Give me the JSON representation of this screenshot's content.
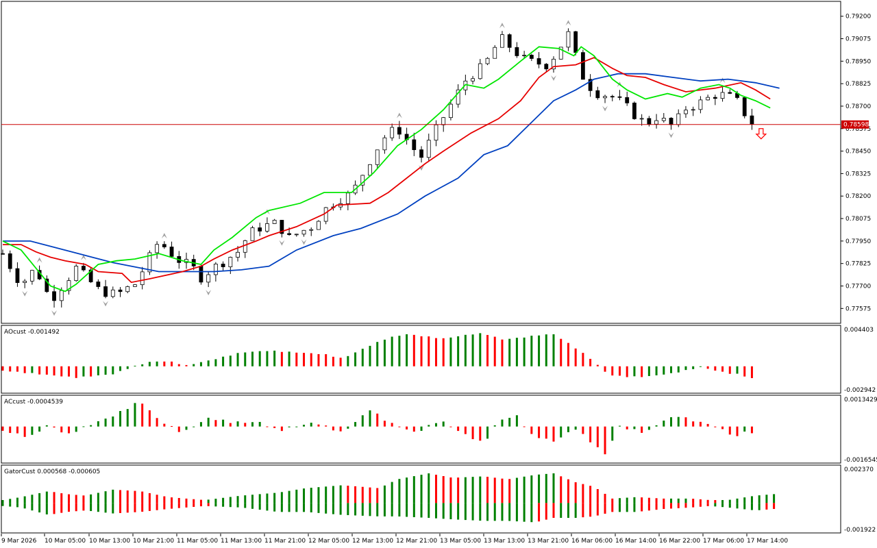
{
  "chart_data": {
    "type": "candlestick",
    "colors": {
      "background": "#ffffff",
      "frame": "#000000",
      "bull_body": "#ffffff",
      "bear_body": "#000000",
      "fast_ma": "#00e600",
      "mid_ma": "#e60000",
      "slow_ma": "#0040c0",
      "hline": "#cc0000",
      "histogram_up": "#008000",
      "histogram_down": "#ff0000",
      "fractal_marker": "#a0a0a0",
      "sell_arrow": "#ff0000"
    },
    "main": {
      "price_axis_labels": [
        "0.79200",
        "0.79075",
        "0.78950",
        "0.78825",
        "0.78700",
        "0.78575",
        "0.78450",
        "0.78325",
        "0.78200",
        "0.78075",
        "0.77950",
        "0.77825",
        "0.77700",
        "0.77575"
      ],
      "price_ticks": [
        0.792,
        0.79075,
        0.7895,
        0.78825,
        0.787,
        0.78575,
        0.7845,
        0.78325,
        0.782,
        0.78075,
        0.7795,
        0.77825,
        0.777,
        0.77575
      ],
      "ylim": [
        0.775,
        0.79275
      ],
      "current_price_label": "0.78598",
      "current_price": 0.78598,
      "x_labels": [
        "9 Mar 2026",
        "10 Mar 05:00",
        "10 Mar 13:00",
        "10 Mar 21:00",
        "11 Mar 05:00",
        "11 Mar 13:00",
        "11 Mar 21:00",
        "12 Mar 05:00",
        "12 Mar 13:00",
        "12 Mar 21:00",
        "13 Mar 05:00",
        "13 Mar 13:00",
        "13 Mar 21:00",
        "16 Mar 06:00",
        "16 Mar 14:00",
        "16 Mar 22:00",
        "17 Mar 06:00",
        "17 Mar 14:00"
      ],
      "close_path": [
        [
          0,
          0.7788
        ],
        [
          10,
          0.7771
        ],
        [
          18,
          0.778
        ],
        [
          26,
          0.7762
        ],
        [
          40,
          0.778
        ],
        [
          52,
          0.7768
        ],
        [
          58,
          0.7766
        ],
        [
          62,
          0.7765
        ],
        [
          70,
          0.777
        ],
        [
          72,
          0.7771
        ],
        [
          85,
          0.7795
        ],
        [
          95,
          0.7785
        ],
        [
          105,
          0.7779
        ],
        [
          108,
          0.7775
        ],
        [
          112,
          0.7778
        ],
        [
          122,
          0.7785
        ],
        [
          128,
          0.7789
        ],
        [
          133,
          0.7797
        ],
        [
          138,
          0.7802
        ],
        [
          145,
          0.7804
        ],
        [
          150,
          0.7805
        ],
        [
          153,
          0.78
        ],
        [
          155,
          0.7796
        ],
        [
          162,
          0.78
        ],
        [
          168,
          0.7803
        ],
        [
          175,
          0.7812
        ],
        [
          182,
          0.7818
        ],
        [
          190,
          0.7821
        ],
        [
          200,
          0.784
        ],
        [
          207,
          0.7852
        ],
        [
          215,
          0.7858
        ],
        [
          224,
          0.7846
        ],
        [
          228,
          0.7842
        ],
        [
          240,
          0.7864
        ],
        [
          253,
          0.7886
        ],
        [
          262,
          0.7892
        ],
        [
          270,
          0.7906
        ],
        [
          272,
          0.7907
        ],
        [
          285,
          0.7895
        ],
        [
          297,
          0.7893
        ],
        [
          308,
          0.791
        ],
        [
          315,
          0.7888
        ],
        [
          322,
          0.7878
        ],
        [
          333,
          0.7875
        ],
        [
          339,
          0.787
        ],
        [
          350,
          0.786
        ],
        [
          356,
          0.7864
        ],
        [
          366,
          0.7858
        ],
        [
          370,
          0.7868
        ],
        [
          380,
          0.7872
        ],
        [
          389,
          0.7877
        ],
        [
          399,
          0.7874
        ],
        [
          406,
          0.7863
        ],
        [
          410,
          0.7859
        ]
      ],
      "fast_ma_path": [
        [
          0,
          0.7795
        ],
        [
          10,
          0.779
        ],
        [
          18,
          0.778
        ],
        [
          26,
          0.777
        ],
        [
          34,
          0.7767
        ],
        [
          40,
          0.7771
        ],
        [
          52,
          0.7782
        ],
        [
          62,
          0.7784
        ],
        [
          72,
          0.7785
        ],
        [
          85,
          0.7788
        ],
        [
          98,
          0.7784
        ],
        [
          108,
          0.7782
        ],
        [
          115,
          0.779
        ],
        [
          125,
          0.7797
        ],
        [
          138,
          0.7808
        ],
        [
          145,
          0.7812
        ],
        [
          162,
          0.7816
        ],
        [
          175,
          0.7822
        ],
        [
          190,
          0.7822
        ],
        [
          202,
          0.7833
        ],
        [
          215,
          0.7848
        ],
        [
          228,
          0.7857
        ],
        [
          240,
          0.7868
        ],
        [
          252,
          0.7882
        ],
        [
          262,
          0.788
        ],
        [
          270,
          0.7885
        ],
        [
          282,
          0.7895
        ],
        [
          292,
          0.7903
        ],
        [
          303,
          0.7902
        ],
        [
          311,
          0.7898
        ],
        [
          315,
          0.7903
        ],
        [
          322,
          0.7898
        ],
        [
          332,
          0.7885
        ],
        [
          340,
          0.7879
        ],
        [
          350,
          0.7874
        ],
        [
          362,
          0.7877
        ],
        [
          370,
          0.7875
        ],
        [
          380,
          0.788
        ],
        [
          390,
          0.7882
        ],
        [
          396,
          0.788
        ],
        [
          402,
          0.7876
        ],
        [
          410,
          0.7873
        ],
        [
          418,
          0.7869
        ]
      ],
      "mid_ma_path": [
        [
          0,
          0.7793
        ],
        [
          10,
          0.7793
        ],
        [
          18,
          0.7789
        ],
        [
          26,
          0.7786
        ],
        [
          34,
          0.7784
        ],
        [
          45,
          0.7782
        ],
        [
          52,
          0.7778
        ],
        [
          65,
          0.7777
        ],
        [
          70,
          0.7772
        ],
        [
          80,
          0.7774
        ],
        [
          98,
          0.7778
        ],
        [
          108,
          0.7781
        ],
        [
          115,
          0.7785
        ],
        [
          125,
          0.779
        ],
        [
          138,
          0.7795
        ],
        [
          145,
          0.7798
        ],
        [
          160,
          0.7803
        ],
        [
          175,
          0.781
        ],
        [
          182,
          0.7815
        ],
        [
          200,
          0.7816
        ],
        [
          210,
          0.7822
        ],
        [
          220,
          0.783
        ],
        [
          230,
          0.7838
        ],
        [
          240,
          0.7845
        ],
        [
          255,
          0.7855
        ],
        [
          270,
          0.7863
        ],
        [
          282,
          0.7873
        ],
        [
          292,
          0.7886
        ],
        [
          300,
          0.7892
        ],
        [
          312,
          0.7893
        ],
        [
          322,
          0.7897
        ],
        [
          332,
          0.7891
        ],
        [
          340,
          0.7887
        ],
        [
          350,
          0.7886
        ],
        [
          360,
          0.7882
        ],
        [
          372,
          0.7878
        ],
        [
          388,
          0.788
        ],
        [
          402,
          0.7883
        ],
        [
          410,
          0.7879
        ],
        [
          418,
          0.7874
        ]
      ],
      "slow_ma_path": [
        [
          0,
          0.7795
        ],
        [
          15,
          0.7795
        ],
        [
          30,
          0.7791
        ],
        [
          45,
          0.7787
        ],
        [
          60,
          0.7783
        ],
        [
          75,
          0.778
        ],
        [
          85,
          0.7778
        ],
        [
          100,
          0.7778
        ],
        [
          115,
          0.7778
        ],
        [
          130,
          0.7779
        ],
        [
          145,
          0.7781
        ],
        [
          160,
          0.779
        ],
        [
          180,
          0.7798
        ],
        [
          195,
          0.7802
        ],
        [
          215,
          0.781
        ],
        [
          230,
          0.782
        ],
        [
          248,
          0.783
        ],
        [
          262,
          0.7843
        ],
        [
          275,
          0.7848
        ],
        [
          288,
          0.7861
        ],
        [
          300,
          0.7873
        ],
        [
          312,
          0.7879
        ],
        [
          322,
          0.7885
        ],
        [
          335,
          0.7888
        ],
        [
          350,
          0.7888
        ],
        [
          365,
          0.7886
        ],
        [
          380,
          0.7884
        ],
        [
          395,
          0.7885
        ],
        [
          410,
          0.7883
        ],
        [
          423,
          0.788
        ]
      ],
      "candle_count": 410,
      "sell_signal_label": "sell-arrow"
    },
    "panels": [
      {
        "title": "AOcust -0.001492",
        "scale_top_label": "0.004403",
        "scale_bottom_label": "-0.002942",
        "ylim": [
          -0.002942,
          0.004403
        ],
        "values_path": [
          [
            0,
            -0.0005
          ],
          [
            20,
            -0.0009
          ],
          [
            40,
            -0.0013
          ],
          [
            60,
            -0.0009
          ],
          [
            70,
            -0.0001
          ],
          [
            80,
            0.0005
          ],
          [
            90,
            0.0006
          ],
          [
            100,
            0.0001
          ],
          [
            115,
            0.0008
          ],
          [
            130,
            0.0016
          ],
          [
            145,
            0.0018
          ],
          [
            160,
            0.0016
          ],
          [
            175,
            0.0014
          ],
          [
            185,
            0.0009
          ],
          [
            200,
            0.0024
          ],
          [
            210,
            0.0033
          ],
          [
            220,
            0.0037
          ],
          [
            240,
            0.0032
          ],
          [
            255,
            0.0037
          ],
          [
            262,
            0.0038
          ],
          [
            272,
            0.0031
          ],
          [
            282,
            0.0033
          ],
          [
            292,
            0.0036
          ],
          [
            300,
            0.0037
          ],
          [
            310,
            0.0024
          ],
          [
            320,
            0.0009
          ],
          [
            330,
            -0.001
          ],
          [
            340,
            -0.0012
          ],
          [
            350,
            -0.0012
          ],
          [
            365,
            -0.0008
          ],
          [
            380,
            -0.0001
          ],
          [
            395,
            -0.0008
          ],
          [
            400,
            -0.0009
          ],
          [
            410,
            -0.0015
          ]
        ],
        "colors_up": "#008000",
        "colors_down": "#ff0000"
      },
      {
        "title": "ACcust -0.0004539",
        "scale_top_label": "0.0013429",
        "scale_bottom_label": "-0.0016545",
        "ylim": [
          -0.0016545,
          0.0013429
        ],
        "values_path": [
          [
            0,
            -0.0002
          ],
          [
            15,
            -0.0005
          ],
          [
            25,
            0.0001
          ],
          [
            35,
            -0.0004
          ],
          [
            45,
            0.0
          ],
          [
            60,
            0.0005
          ],
          [
            75,
            0.0012
          ],
          [
            85,
            0.0003
          ],
          [
            98,
            -0.0003
          ],
          [
            112,
            0.0004
          ],
          [
            125,
            0.0002
          ],
          [
            140,
            0.0002
          ],
          [
            150,
            -0.0002
          ],
          [
            170,
            0.0002
          ],
          [
            185,
            -0.0003
          ],
          [
            200,
            0.0008
          ],
          [
            210,
            0.0002
          ],
          [
            225,
            -0.0003
          ],
          [
            238,
            0.0003
          ],
          [
            250,
            -0.0003
          ],
          [
            262,
            -0.0008
          ],
          [
            270,
            0.0003
          ],
          [
            280,
            0.0005
          ],
          [
            288,
            -0.0004
          ],
          [
            300,
            -0.0007
          ],
          [
            312,
            -0.0001
          ],
          [
            320,
            -0.0007
          ],
          [
            328,
            -0.0013
          ],
          [
            336,
            0.0
          ],
          [
            350,
            -0.0003
          ],
          [
            360,
            0.0003
          ],
          [
            368,
            0.0005
          ],
          [
            375,
            0.0003
          ],
          [
            385,
            0.0001
          ],
          [
            393,
            -0.0002
          ],
          [
            400,
            -0.0005
          ],
          [
            404,
            -0.0002
          ],
          [
            410,
            -0.0004
          ]
        ],
        "colors_up": "#008000",
        "colors_down": "#ff0000"
      },
      {
        "title": "GatorCust 0.000568 -0.000605",
        "scale_top_label": "0.002370",
        "scale_bottom_label": "-0.001922",
        "ylim": [
          -0.001922,
          0.00237
        ],
        "upper_path": [
          [
            0,
            0.0002
          ],
          [
            10,
            0.0004
          ],
          [
            25,
            0.0008
          ],
          [
            35,
            0.0006
          ],
          [
            45,
            0.0005
          ],
          [
            60,
            0.0009
          ],
          [
            75,
            0.0008
          ],
          [
            90,
            0.0004
          ],
          [
            110,
            0.0002
          ],
          [
            130,
            0.0005
          ],
          [
            150,
            0.0007
          ],
          [
            165,
            0.001
          ],
          [
            185,
            0.0012
          ],
          [
            205,
            0.001
          ],
          [
            215,
            0.0016
          ],
          [
            232,
            0.002
          ],
          [
            245,
            0.0017
          ],
          [
            262,
            0.0018
          ],
          [
            275,
            0.0016
          ],
          [
            290,
            0.0019
          ],
          [
            300,
            0.002
          ],
          [
            312,
            0.0014
          ],
          [
            322,
            0.0011
          ],
          [
            332,
            0.0003
          ],
          [
            345,
            0.0004
          ],
          [
            360,
            0.0003
          ],
          [
            375,
            0.0003
          ],
          [
            385,
            0.0002
          ],
          [
            395,
            0.0002
          ],
          [
            410,
            0.0005
          ],
          [
            420,
            0.0006
          ]
        ],
        "lower_path": [
          [
            0,
            -0.0002
          ],
          [
            10,
            -0.0003
          ],
          [
            25,
            -0.0008
          ],
          [
            35,
            -0.0006
          ],
          [
            45,
            -0.0005
          ],
          [
            60,
            -0.0007
          ],
          [
            75,
            -0.0006
          ],
          [
            90,
            -0.0004
          ],
          [
            110,
            -0.0002
          ],
          [
            130,
            -0.0003
          ],
          [
            150,
            -0.0006
          ],
          [
            165,
            -0.0006
          ],
          [
            185,
            -0.0008
          ],
          [
            205,
            -0.0009
          ],
          [
            215,
            -0.0009
          ],
          [
            232,
            -0.001
          ],
          [
            245,
            -0.0011
          ],
          [
            262,
            -0.0012
          ],
          [
            275,
            -0.0012
          ],
          [
            290,
            -0.0013
          ],
          [
            300,
            -0.001
          ],
          [
            312,
            -0.001
          ],
          [
            322,
            -0.0009
          ],
          [
            332,
            -0.0006
          ],
          [
            345,
            -0.0006
          ],
          [
            360,
            -0.0004
          ],
          [
            375,
            -0.0003
          ],
          [
            385,
            -0.0002
          ],
          [
            395,
            -0.0003
          ],
          [
            410,
            -0.0005
          ],
          [
            420,
            -0.0004
          ]
        ],
        "colors_up": "#008000",
        "colors_down": "#ff0000"
      }
    ]
  }
}
